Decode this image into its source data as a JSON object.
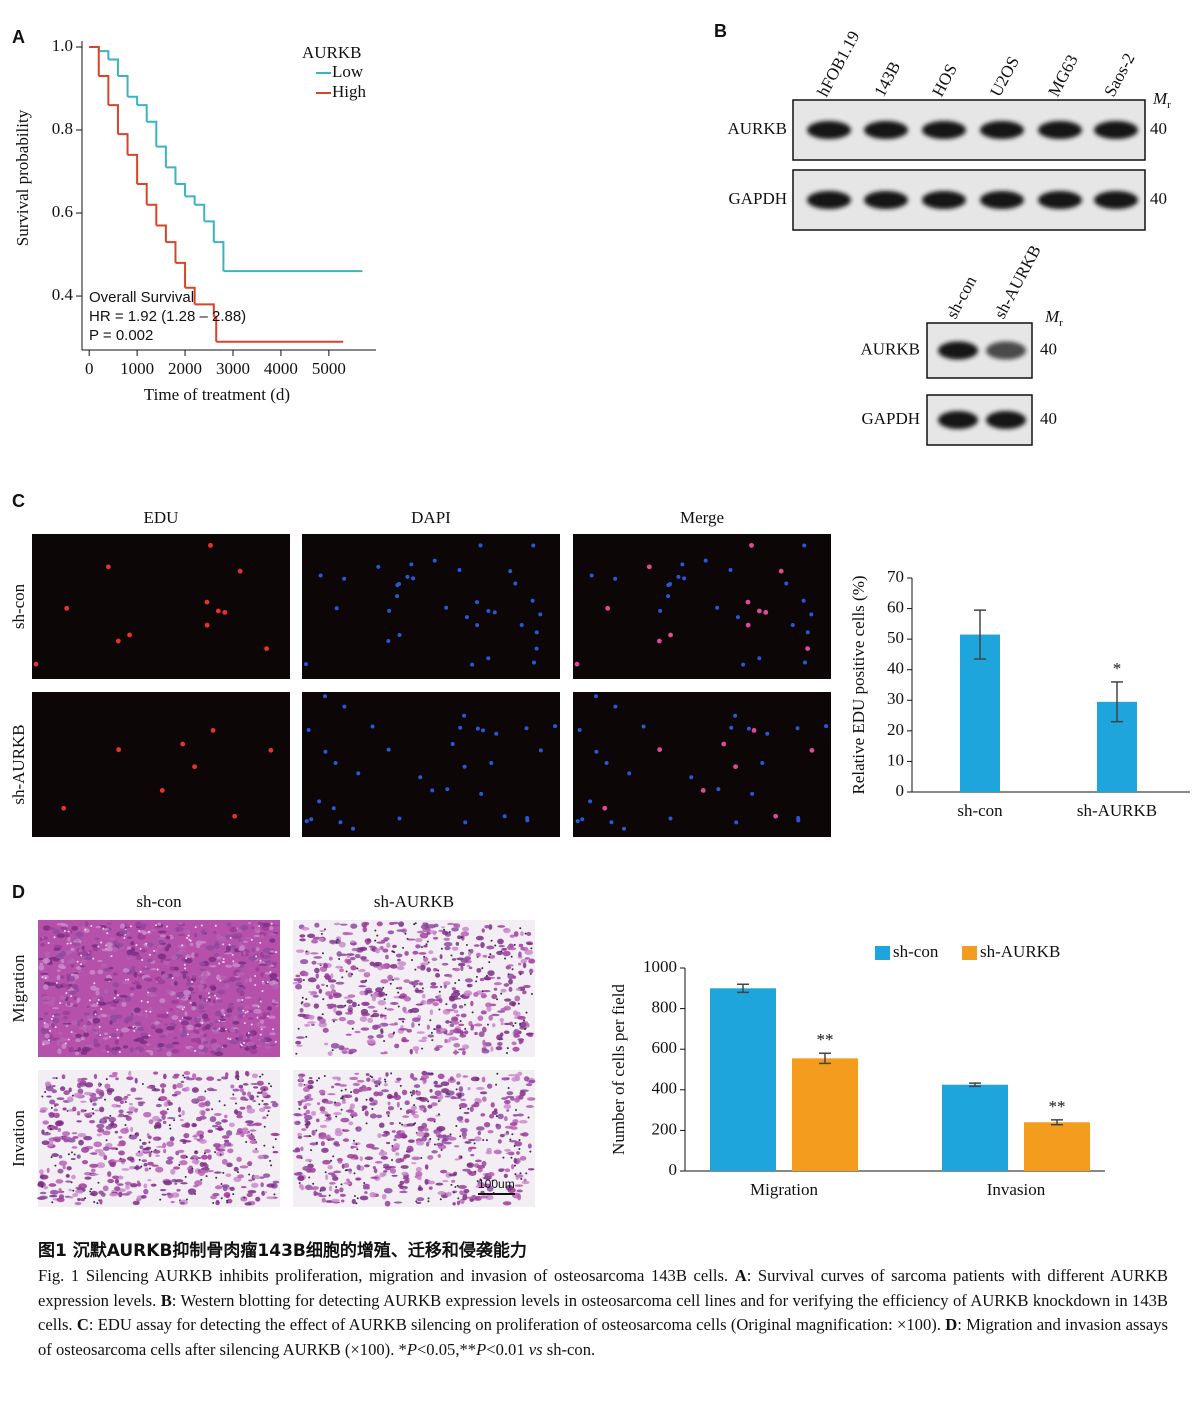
{
  "panel_labels": [
    "A",
    "B",
    "C",
    "D"
  ],
  "chart_data": [
    {
      "type": "line",
      "step": true,
      "xlabel": "Time of treatment (d)",
      "ylabel": "Survival probability",
      "legend_title": "AURKB",
      "legend_corner": "upper right",
      "xlim": [
        -150,
        5900
      ],
      "ylim": [
        0.27,
        1.0
      ],
      "xticks": [
        0,
        1000,
        2000,
        3000,
        4000,
        5000
      ],
      "yticks": [
        0.4,
        0.6,
        0.8,
        {
          "value": 1.0,
          "label": "1.0"
        }
      ],
      "annotations": [
        "Overall Survival",
        "HR = 1.92 (1.28 – 2.88)",
        "P = 0.002"
      ],
      "series": [
        {
          "name": "Low",
          "color": "#3bb3c3",
          "x": [
            0,
            200,
            400,
            600,
            800,
            1000,
            1200,
            1400,
            1600,
            1800,
            2000,
            2200,
            2400,
            2600,
            2800,
            5700
          ],
          "values": [
            1.0,
            0.99,
            0.97,
            0.93,
            0.88,
            0.86,
            0.82,
            0.76,
            0.71,
            0.67,
            0.64,
            0.62,
            0.58,
            0.53,
            0.46,
            0.46
          ]
        },
        {
          "name": "High",
          "color": "#d9432b",
          "x": [
            0,
            200,
            400,
            600,
            800,
            1000,
            1200,
            1400,
            1600,
            1800,
            2000,
            2200,
            2600,
            2650,
            5300
          ],
          "values": [
            1.0,
            0.93,
            0.86,
            0.79,
            0.74,
            0.67,
            0.62,
            0.57,
            0.53,
            0.48,
            0.42,
            0.38,
            0.35,
            0.29,
            0.29
          ]
        }
      ]
    },
    {
      "type": "bar",
      "ylabel": "Relative EDU positive cells (%)",
      "categories": [
        "sh-con",
        "sh-AURKB"
      ],
      "values": [
        51.5,
        29.5
      ],
      "errors": [
        8,
        6.5
      ],
      "significance": [
        null,
        "*"
      ],
      "color": "#1ea5dc",
      "ylim": [
        0,
        70
      ],
      "yticks": [
        0,
        10,
        20,
        30,
        40,
        50,
        60,
        70
      ]
    },
    {
      "type": "bar",
      "ylabel": "Number of cells per field",
      "legend_corner": "top",
      "categories": [
        "Migration",
        "Invasion"
      ],
      "series": [
        {
          "name": "sh-con",
          "color": "#1ea5dc",
          "values": [
            900,
            425
          ],
          "errors": [
            20,
            8
          ]
        },
        {
          "name": "sh-AURKB",
          "color": "#f39c1e",
          "values": [
            555,
            240
          ],
          "errors": [
            25,
            12
          ],
          "significance": [
            "**",
            "**"
          ]
        }
      ],
      "ylim": [
        0,
        1000
      ],
      "yticks": [
        0,
        200,
        400,
        600,
        800,
        1000
      ]
    }
  ],
  "blots": [
    {
      "lanes": [
        "hFOB1.19",
        "143B",
        "HOS",
        "U2OS",
        "MG63",
        "Saos-2"
      ],
      "rows": [
        "AURKB",
        "GAPDH"
      ],
      "mw": [
        40,
        40
      ],
      "mr": {
        "symbol": "M",
        "subscript": "r"
      }
    },
    {
      "lanes": [
        "sh-con",
        "sh-AURKB"
      ],
      "rows": [
        "AURKB",
        "GAPDH"
      ],
      "mw": [
        40,
        40
      ],
      "mr": {
        "symbol": "M",
        "subscript": "r"
      }
    }
  ],
  "edu_images": {
    "columns": [
      "EDU",
      "DAPI",
      "Merge"
    ],
    "rows": [
      "sh-con",
      "sh-AURKB"
    ]
  },
  "transwell_images": {
    "columns": [
      "sh-con",
      "sh-AURKB"
    ],
    "rows": [
      "Migration",
      "Invation"
    ],
    "scale_bar": "100um"
  },
  "caption": {
    "title": "图1  沉默AURKB抑制骨肉瘤143B细胞的增殖、迁移和侵袭能力",
    "parts": [
      "Fig. 1  Silencing AURKB inhibits proliferation, migration and invasion of osteosarcoma 143B cells. ",
      "A",
      ": Survival curves of sarcoma patients with different AURKB expression levels. ",
      "B",
      ": Western blotting for detecting AURKB expression levels in osteosarcoma cell lines and for verifying the efficiency of AURKB knockdown in 143B cells. ",
      "C",
      ": EDU assay for detecting the effect of AURKB silencing on proliferation of osteosarcoma cells (Original magnification: ×100). ",
      "D",
      ": Migration and invasion assays of osteosarcoma cells after silencing AURKB (×100). *",
      "P",
      "<0.05,**",
      "P",
      "<0.01 ",
      "vs",
      " sh-con."
    ]
  }
}
